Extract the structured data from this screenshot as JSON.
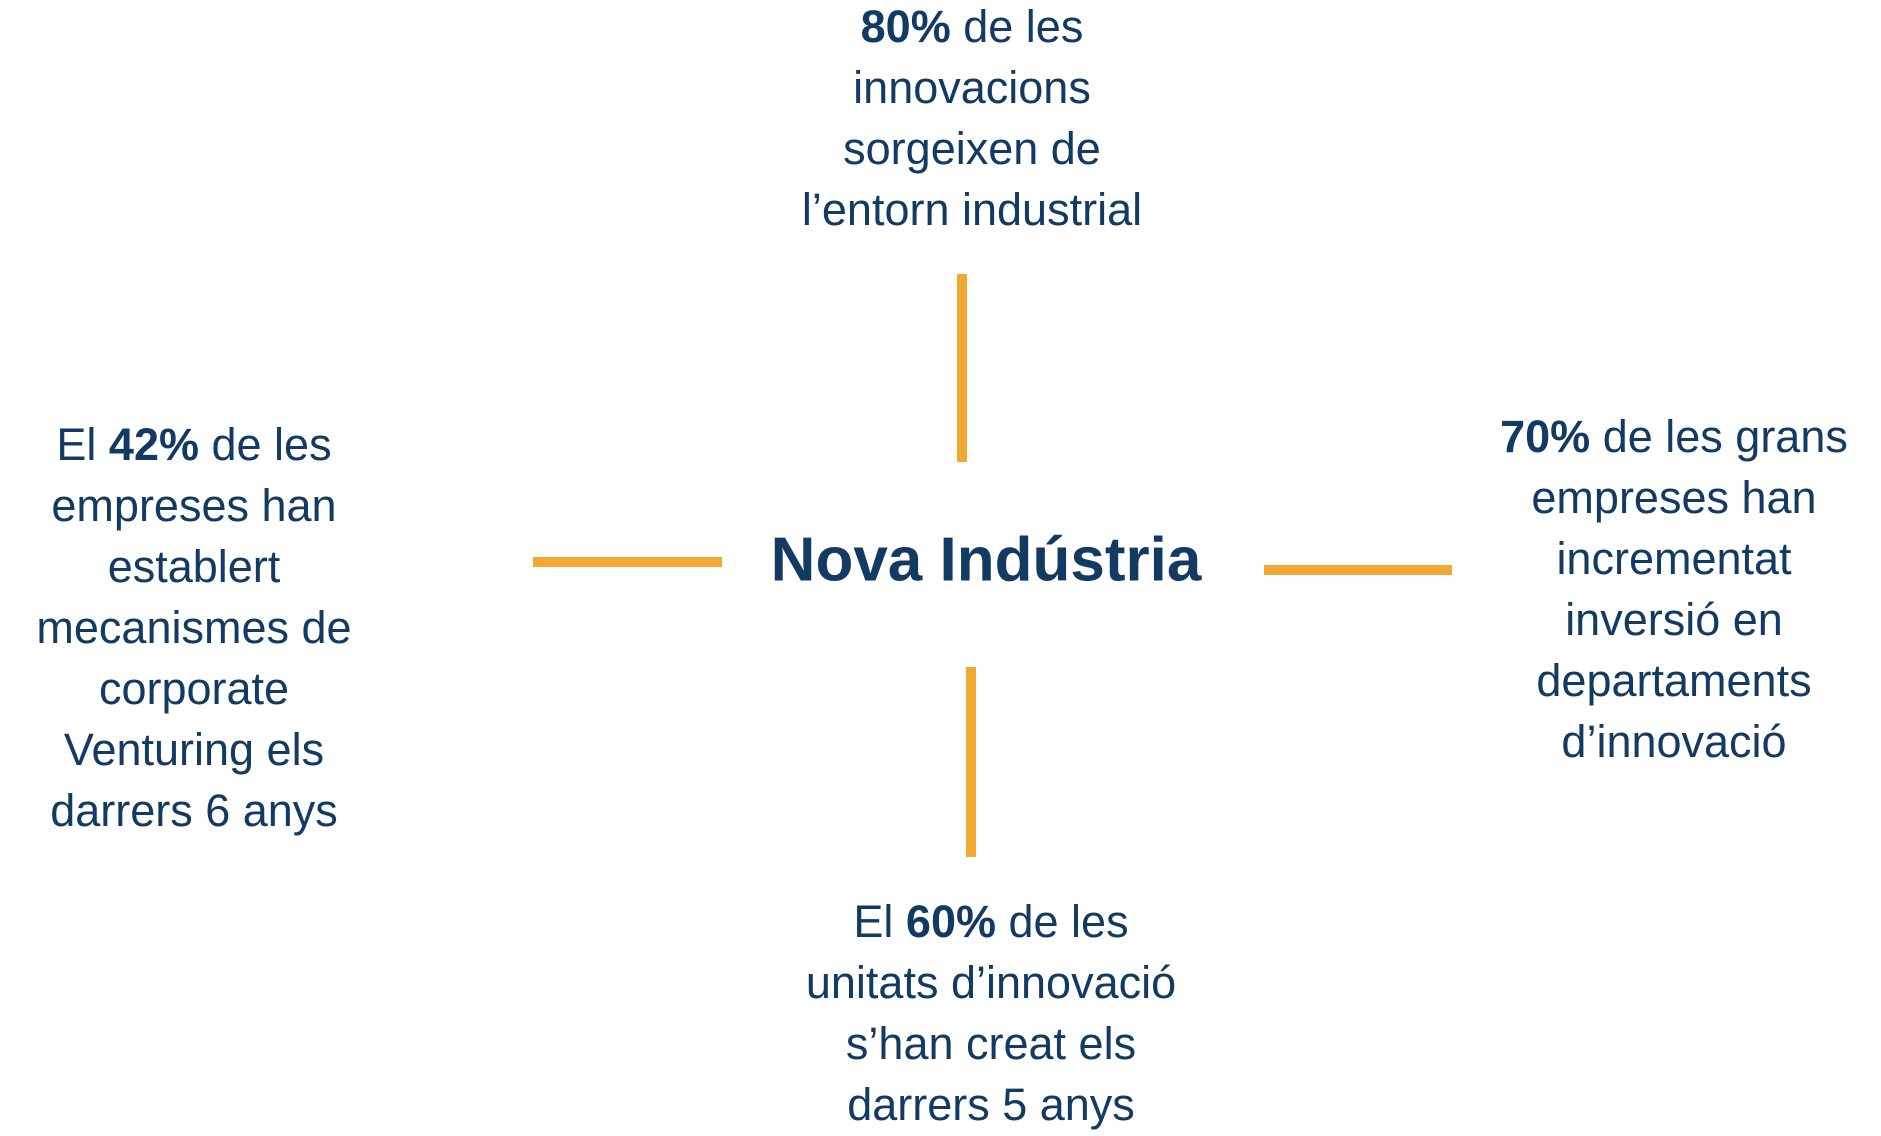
{
  "center": {
    "title": "Nova Indústria"
  },
  "nodes": [
    {
      "figure": "80%",
      "suffix": " de les",
      "lines": [
        "innovacions",
        "sorgeixen de",
        "l’entorn industrial"
      ]
    },
    {
      "prefix": "El ",
      "figure": "42%",
      "suffix": " de les",
      "lines": [
        "empreses han",
        "establert",
        "mecanismes de",
        "corporate",
        "Venturing els",
        "darrers 6 anys"
      ]
    },
    {
      "figure": "70%",
      "suffix": " de les grans",
      "lines": [
        "empreses han",
        "incrementat",
        "inversió en",
        "departaments",
        "d’innovació"
      ]
    },
    {
      "prefix": "El ",
      "figure": "60%",
      "suffix": " de les",
      "lines": [
        "unitats d’innovació",
        "s’han creat els",
        "darrers 5 anys"
      ]
    }
  ]
}
